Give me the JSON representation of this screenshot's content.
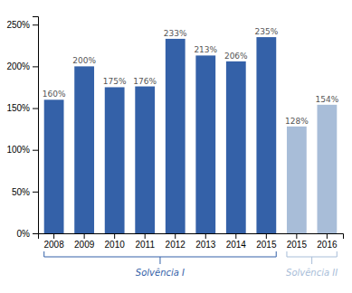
{
  "chart_data": {
    "type": "bar",
    "categories": [
      "2008",
      "2009",
      "2010",
      "2011",
      "2012",
      "2013",
      "2014",
      "2015",
      "2015",
      "2016"
    ],
    "series": [
      {
        "name": "Solvência I",
        "color": "#3461A8",
        "values": [
          160,
          200,
          175,
          176,
          233,
          213,
          206,
          235,
          null,
          null
        ],
        "value_labels": [
          "160%",
          "200%",
          "175%",
          "176%",
          "233%",
          "213%",
          "206%",
          "235%",
          null,
          null
        ]
      },
      {
        "name": "Solvência II",
        "color": "#A8BDD8",
        "values": [
          null,
          null,
          null,
          null,
          null,
          null,
          null,
          null,
          128,
          154
        ],
        "value_labels": [
          null,
          null,
          null,
          null,
          null,
          null,
          null,
          null,
          "128%",
          "154%"
        ]
      }
    ],
    "ylim": [
      0,
      260
    ],
    "yticks": [
      {
        "value": 0,
        "label": "0%"
      },
      {
        "value": 50,
        "label": "50%"
      },
      {
        "value": 100,
        "label": "100%"
      },
      {
        "value": 150,
        "label": "150%"
      },
      {
        "value": 200,
        "label": "200%"
      },
      {
        "value": 250,
        "label": "250%"
      }
    ],
    "data_labels": true,
    "grid": false
  }
}
